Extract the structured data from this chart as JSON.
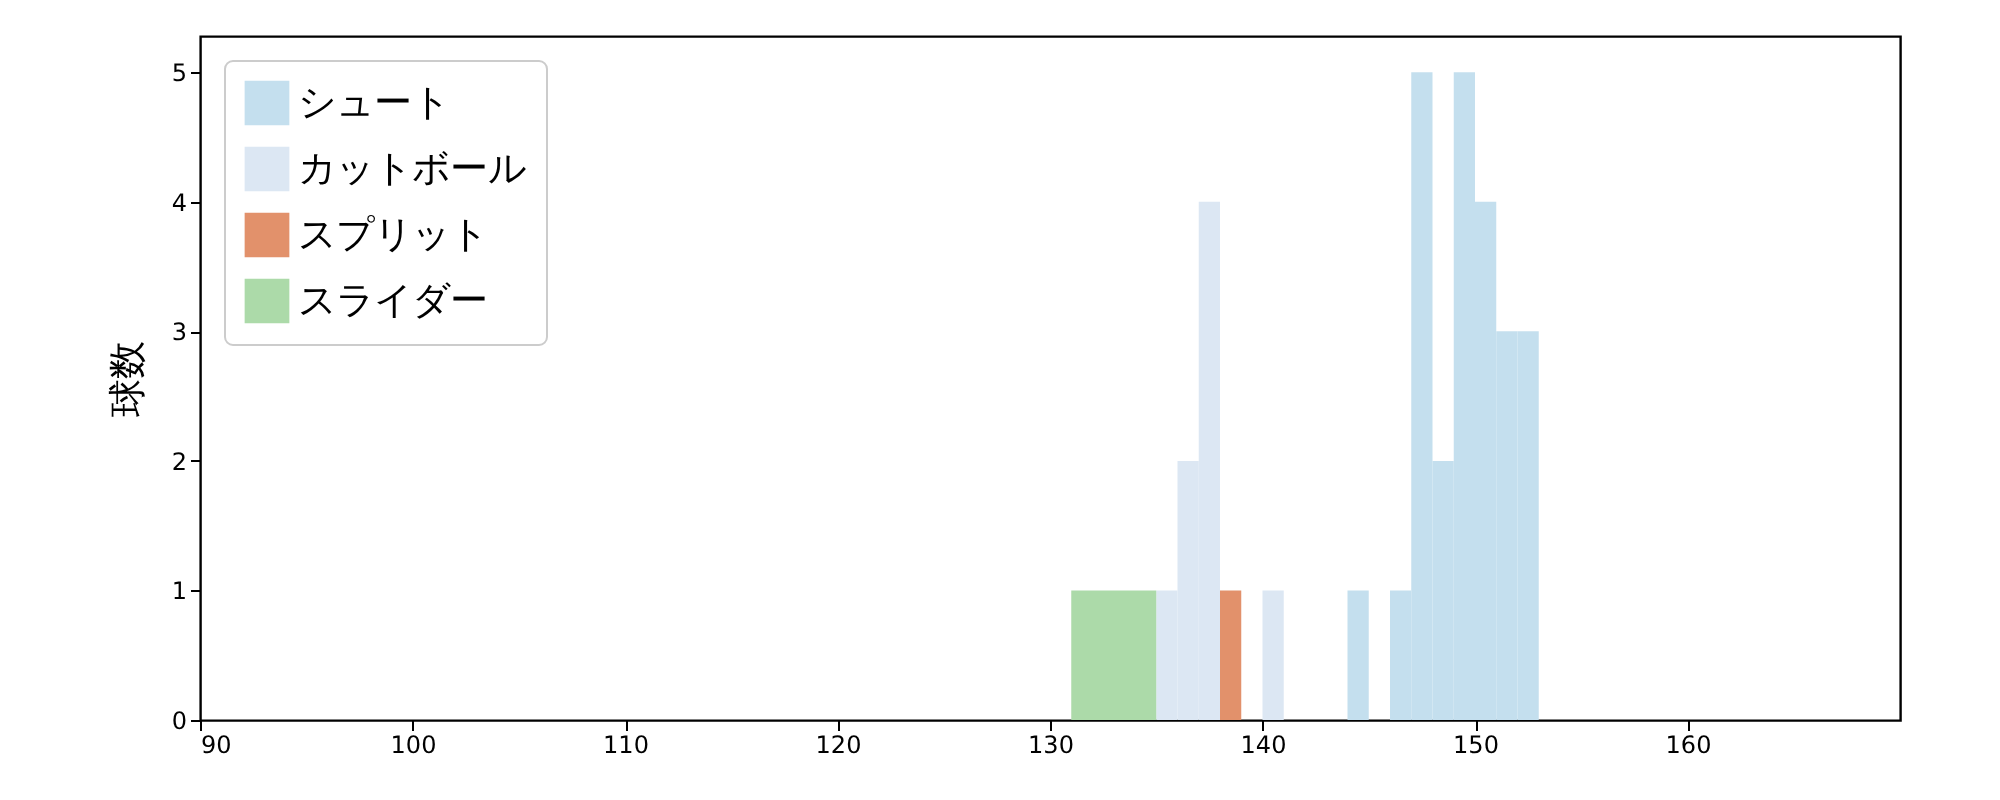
{
  "chart_data": {
    "type": "histogram",
    "ylabel": "球数",
    "xlim": [
      90,
      170
    ],
    "xticks": [
      90,
      100,
      110,
      120,
      130,
      140,
      150,
      160
    ],
    "ylim": [
      0,
      5.28
    ],
    "yticks": [
      0,
      1,
      2,
      3,
      4,
      5
    ],
    "legend": "top left",
    "bins": [
      131,
      135,
      136,
      137,
      138,
      139,
      140,
      141,
      144,
      145,
      146,
      147,
      148,
      149,
      150,
      151,
      152,
      153
    ],
    "series": [
      {
        "name": "シュート",
        "color": "#c4dfee",
        "values": [
          0,
          0,
          0,
          0,
          0,
          0,
          0,
          0,
          1,
          0,
          1,
          5,
          2,
          5,
          4,
          3,
          3
        ]
      },
      {
        "name": "カットボール",
        "color": "#dce7f3",
        "values": [
          0,
          1,
          2,
          4,
          0,
          0,
          1,
          0,
          0,
          0,
          0,
          0,
          0,
          0,
          0,
          0,
          0
        ]
      },
      {
        "name": "スプリット",
        "color": "#e2916b",
        "values": [
          0,
          0,
          0,
          0,
          1,
          0,
          0,
          0,
          0,
          0,
          0,
          0,
          0,
          0,
          0,
          0,
          0
        ]
      },
      {
        "name": "スライダー",
        "color": "#acdaa9",
        "values": [
          1,
          0,
          0,
          0,
          0,
          0,
          0,
          0,
          0,
          0,
          0,
          0,
          0,
          0,
          0,
          0,
          0
        ]
      }
    ]
  }
}
